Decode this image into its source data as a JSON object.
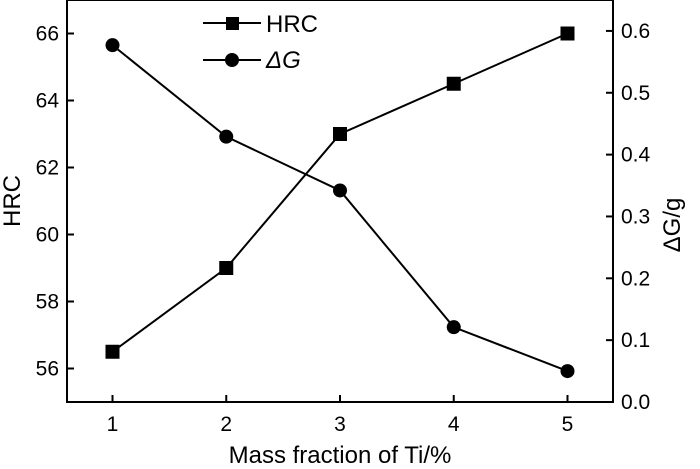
{
  "chart_data": {
    "type": "line",
    "xlabel": "Mass fraction of Ti/%",
    "ylabel_left": "HRC",
    "ylabel_right": "ΔG/g",
    "x": [
      1,
      2,
      3,
      4,
      5
    ],
    "xlim": [
      0.6,
      5.4
    ],
    "ylim_left": [
      55,
      67
    ],
    "ylim_right": [
      0,
      0.65
    ],
    "x_ticks": [
      "1",
      "2",
      "3",
      "4",
      "5"
    ],
    "y_left_ticks": [
      "56",
      "58",
      "60",
      "62",
      "64",
      "66"
    ],
    "y_right_ticks": [
      "0.0",
      "0.1",
      "0.2",
      "0.3",
      "0.4",
      "0.5",
      "0.6"
    ],
    "grid": false,
    "legend_position": "top-center",
    "series": [
      {
        "name": "HRC",
        "axis": "left",
        "marker": "square",
        "values": [
          56.5,
          59.0,
          63.0,
          64.5,
          66.0
        ]
      },
      {
        "name": "ΔG",
        "axis": "right",
        "marker": "circle",
        "values": [
          0.577,
          0.429,
          0.342,
          0.121,
          0.05
        ]
      }
    ]
  }
}
